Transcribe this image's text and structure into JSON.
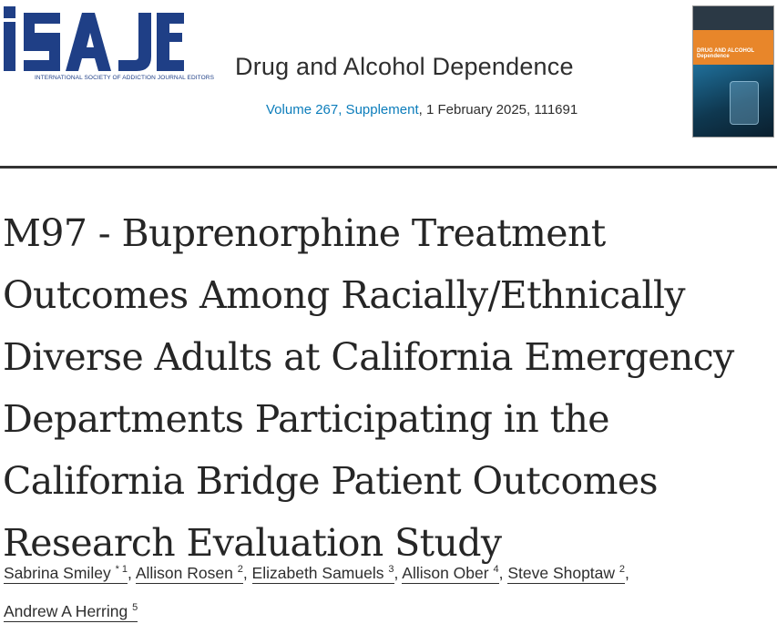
{
  "header": {
    "logo": {
      "text": "iSAJE",
      "caption": "INTERNATIONAL SOCIETY OF ADDICTION JOURNAL EDITORS",
      "color": "#1f3f86"
    },
    "journal_title": "Drug and Alcohol Dependence",
    "volume_link": "Volume 267, Supplement",
    "issue_detail": ", 1 February 2025, 111691",
    "cover": {
      "title": "DRUG AND ALCOHOL Dependence"
    }
  },
  "article": {
    "title": "M97 - Buprenorphine Treatment Outcomes Among Racially/Ethnically Diverse Adults at California Emergency Departments Participating in the California Bridge Patient Outcomes Research Evaluation Study"
  },
  "authors": [
    {
      "name": "Sabrina Smiley",
      "sup": "* 1"
    },
    {
      "name": "Allison Rosen",
      "sup": "2"
    },
    {
      "name": "Elizabeth Samuels",
      "sup": "3"
    },
    {
      "name": "Allison Ober",
      "sup": "4"
    },
    {
      "name": "Steve Shoptaw",
      "sup": "2"
    },
    {
      "name": "Andrew A Herring",
      "sup": "5"
    }
  ],
  "colors": {
    "link": "#0c7dbb",
    "brand": "#1f3f86"
  }
}
